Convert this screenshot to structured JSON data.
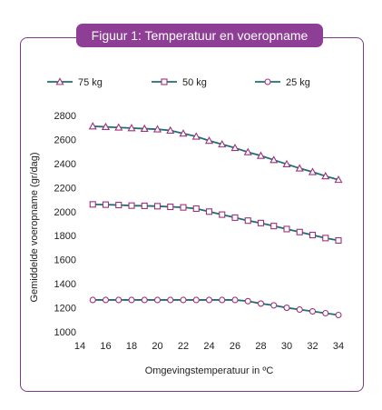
{
  "figure": {
    "title": "Figuur 1: Temperatuur en voeropname"
  },
  "colors": {
    "frame": "#7b3a8a",
    "title_bg": "#8e3e95",
    "line": "#1f6f72",
    "marker": "#a0307f"
  },
  "chart_data": {
    "type": "line",
    "title": "Figuur 1: Temperatuur en voeropname",
    "xlabel": "Omgevingstemperatuur in ºC",
    "ylabel": "Gemiddelde voeropname (gr/dag)",
    "xlim": [
      14,
      34
    ],
    "ylim": [
      1000,
      2800
    ],
    "xticks": [
      14,
      16,
      18,
      20,
      22,
      24,
      26,
      28,
      30,
      32,
      34
    ],
    "yticks": [
      1000,
      1200,
      1400,
      1600,
      1800,
      2000,
      2200,
      2400,
      2600,
      2800
    ],
    "x": [
      15,
      16,
      17,
      18,
      19,
      20,
      21,
      22,
      23,
      24,
      25,
      26,
      27,
      28,
      29,
      30,
      31,
      32,
      33,
      34
    ],
    "legend_position": "top",
    "series": [
      {
        "name": "75 kg",
        "marker": "triangle",
        "values": [
          2710,
          2705,
          2700,
          2695,
          2690,
          2685,
          2675,
          2650,
          2625,
          2590,
          2560,
          2530,
          2495,
          2465,
          2430,
          2395,
          2360,
          2330,
          2295,
          2265
        ]
      },
      {
        "name": "50 kg",
        "marker": "square",
        "values": [
          2060,
          2058,
          2055,
          2050,
          2048,
          2045,
          2040,
          2035,
          2025,
          2000,
          1975,
          1950,
          1925,
          1905,
          1880,
          1855,
          1830,
          1805,
          1780,
          1760
        ]
      },
      {
        "name": "25  kg",
        "marker": "circle",
        "values": [
          1265,
          1265,
          1265,
          1265,
          1265,
          1265,
          1265,
          1265,
          1265,
          1265,
          1265,
          1265,
          1255,
          1235,
          1220,
          1200,
          1185,
          1170,
          1155,
          1140
        ]
      }
    ]
  }
}
